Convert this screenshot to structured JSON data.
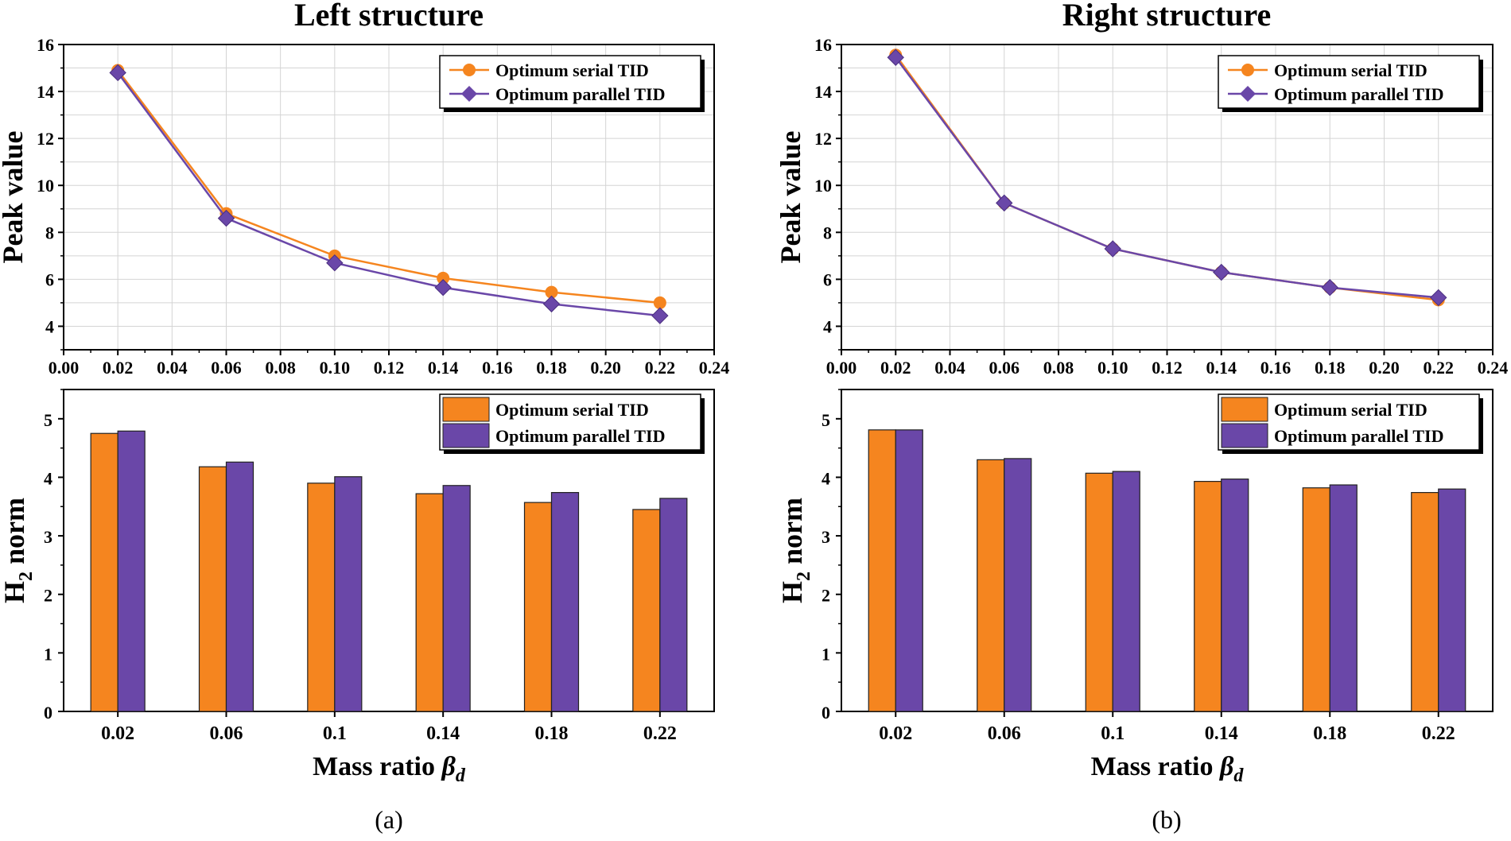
{
  "chart_data": [
    {
      "id": "a_line",
      "panel": "(a)",
      "type": "line",
      "title": "Left structure",
      "ylabel": "Peak value",
      "xlabel": "",
      "x": [
        0.02,
        0.06,
        0.1,
        0.14,
        0.18,
        0.22
      ],
      "xticks": [
        "0.00",
        "0.02",
        "0.04",
        "0.06",
        "0.08",
        "0.10",
        "0.12",
        "0.14",
        "0.16",
        "0.18",
        "0.20",
        "0.22",
        "0.24"
      ],
      "xlim": [
        0,
        0.24
      ],
      "ylim": [
        3,
        16
      ],
      "yticks": [
        "4",
        "6",
        "8",
        "10",
        "12",
        "14",
        "16"
      ],
      "grid": true,
      "legend": "top-right",
      "series": [
        {
          "name": "Optimum serial TID",
          "color": "#f5851f",
          "marker": "circle",
          "values": [
            14.9,
            8.8,
            7.0,
            6.05,
            5.45,
            5.0
          ]
        },
        {
          "name": "Optimum parallel TID",
          "color": "#6a47a8",
          "marker": "diamond",
          "values": [
            14.8,
            8.6,
            6.7,
            5.65,
            4.95,
            4.45
          ]
        }
      ]
    },
    {
      "id": "b_line",
      "panel": "(b)",
      "type": "line",
      "title": "Right structure",
      "ylabel": "Peak value",
      "xlabel": "",
      "x": [
        0.02,
        0.06,
        0.1,
        0.14,
        0.18,
        0.22
      ],
      "xticks": [
        "0.00",
        "0.02",
        "0.04",
        "0.06",
        "0.08",
        "0.10",
        "0.12",
        "0.14",
        "0.16",
        "0.18",
        "0.20",
        "0.22",
        "0.24"
      ],
      "xlim": [
        0,
        0.24
      ],
      "ylim": [
        3,
        16
      ],
      "yticks": [
        "4",
        "6",
        "8",
        "10",
        "12",
        "14",
        "16"
      ],
      "grid": true,
      "legend": "top-right",
      "series": [
        {
          "name": "Optimum serial TID",
          "color": "#f5851f",
          "marker": "circle",
          "values": [
            15.55,
            9.25,
            7.3,
            6.3,
            5.65,
            5.12
          ]
        },
        {
          "name": "Optimum parallel TID",
          "color": "#6a47a8",
          "marker": "diamond",
          "values": [
            15.45,
            9.25,
            7.3,
            6.3,
            5.65,
            5.22
          ]
        }
      ]
    },
    {
      "id": "a_bar",
      "panel": "(a)",
      "type": "bar",
      "title": "",
      "ylabel_main": "H",
      "ylabel_sub": "2",
      "ylabel_rest": " norm",
      "xlabel_main": "Mass ratio ",
      "xlabel_sym": "β",
      "xlabel_sub": "d",
      "categories": [
        "0.02",
        "0.06",
        "0.1",
        "0.14",
        "0.18",
        "0.22"
      ],
      "ylim": [
        0,
        5.5
      ],
      "yticks": [
        "0",
        "1",
        "2",
        "3",
        "4",
        "5"
      ],
      "grid": false,
      "legend": "top-right",
      "series": [
        {
          "name": "Optimum serial TID",
          "color": "#f5851f",
          "values": [
            4.75,
            4.18,
            3.9,
            3.72,
            3.57,
            3.45
          ]
        },
        {
          "name": "Optimum parallel TID",
          "color": "#6a47a8",
          "values": [
            4.79,
            4.26,
            4.01,
            3.86,
            3.74,
            3.64
          ]
        }
      ]
    },
    {
      "id": "b_bar",
      "panel": "(b)",
      "type": "bar",
      "title": "",
      "ylabel_main": "H",
      "ylabel_sub": "2",
      "ylabel_rest": " norm",
      "xlabel_main": "Mass ratio ",
      "xlabel_sym": "β",
      "xlabel_sub": "d",
      "categories": [
        "0.02",
        "0.06",
        "0.1",
        "0.14",
        "0.18",
        "0.22"
      ],
      "ylim": [
        0,
        5.5
      ],
      "yticks": [
        "0",
        "1",
        "2",
        "3",
        "4",
        "5"
      ],
      "grid": false,
      "legend": "top-right",
      "series": [
        {
          "name": "Optimum serial TID",
          "color": "#f5851f",
          "values": [
            4.81,
            4.3,
            4.07,
            3.93,
            3.82,
            3.74
          ]
        },
        {
          "name": "Optimum parallel TID",
          "color": "#6a47a8",
          "values": [
            4.81,
            4.32,
            4.1,
            3.97,
            3.87,
            3.8
          ]
        }
      ]
    }
  ],
  "captions": {
    "a": "(a)",
    "b": "(b)"
  }
}
